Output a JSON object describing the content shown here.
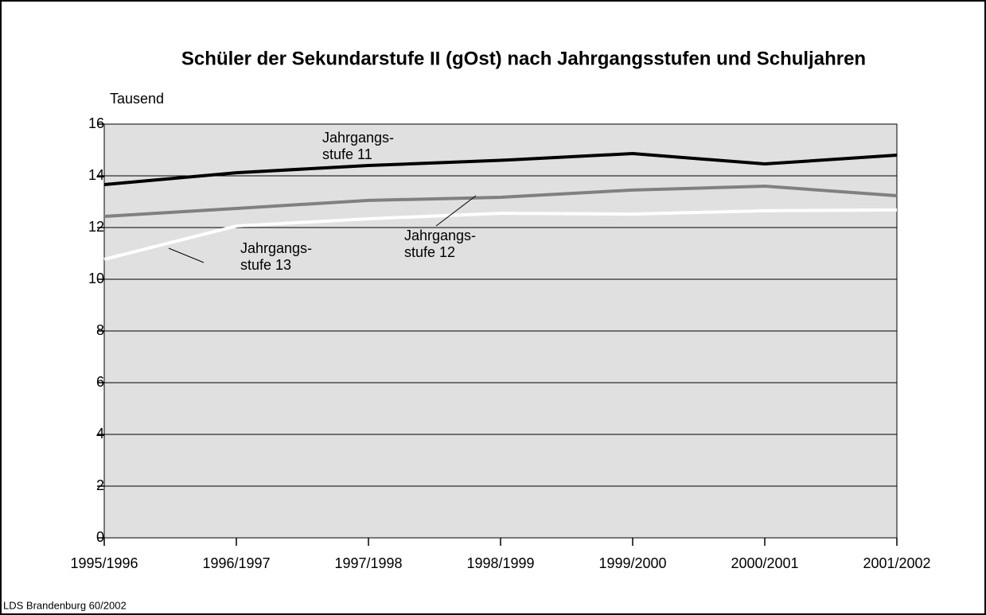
{
  "chart_data": {
    "type": "line",
    "title": "Schüler der Sekundarstufe II (gOst) nach Jahrgangsstufen und Schuljahren",
    "y_label": "Tausend",
    "source": "LDS Brandenburg 60/2002",
    "categories": [
      "1995/1996",
      "1996/1997",
      "1997/1998",
      "1998/1999",
      "1999/2000",
      "2000/2001",
      "2001/2002"
    ],
    "series": [
      {
        "color": "#000000",
        "values": [
          13.66,
          14.12,
          14.4,
          14.6,
          14.86,
          14.46,
          14.8
        ]
      },
      {
        "color": "#808080",
        "values": [
          12.43,
          12.74,
          13.05,
          13.17,
          13.45,
          13.6,
          13.23
        ]
      },
      {
        "color": "#ffffff",
        "values": [
          10.77,
          12.06,
          12.34,
          12.55,
          12.52,
          12.65,
          12.68
        ]
      }
    ],
    "annotations": [
      {
        "lines": [
          "Jahrgangs-",
          "stufe 11"
        ]
      },
      {
        "lines": [
          "Jahrgangs-",
          "stufe 12"
        ]
      },
      {
        "lines": [
          "Jahrgangs-",
          "stufe 13"
        ]
      }
    ],
    "ylim": [
      0,
      16
    ],
    "yticks": [
      0,
      2,
      4,
      6,
      8,
      10,
      12,
      14,
      16
    ],
    "grid": true
  }
}
